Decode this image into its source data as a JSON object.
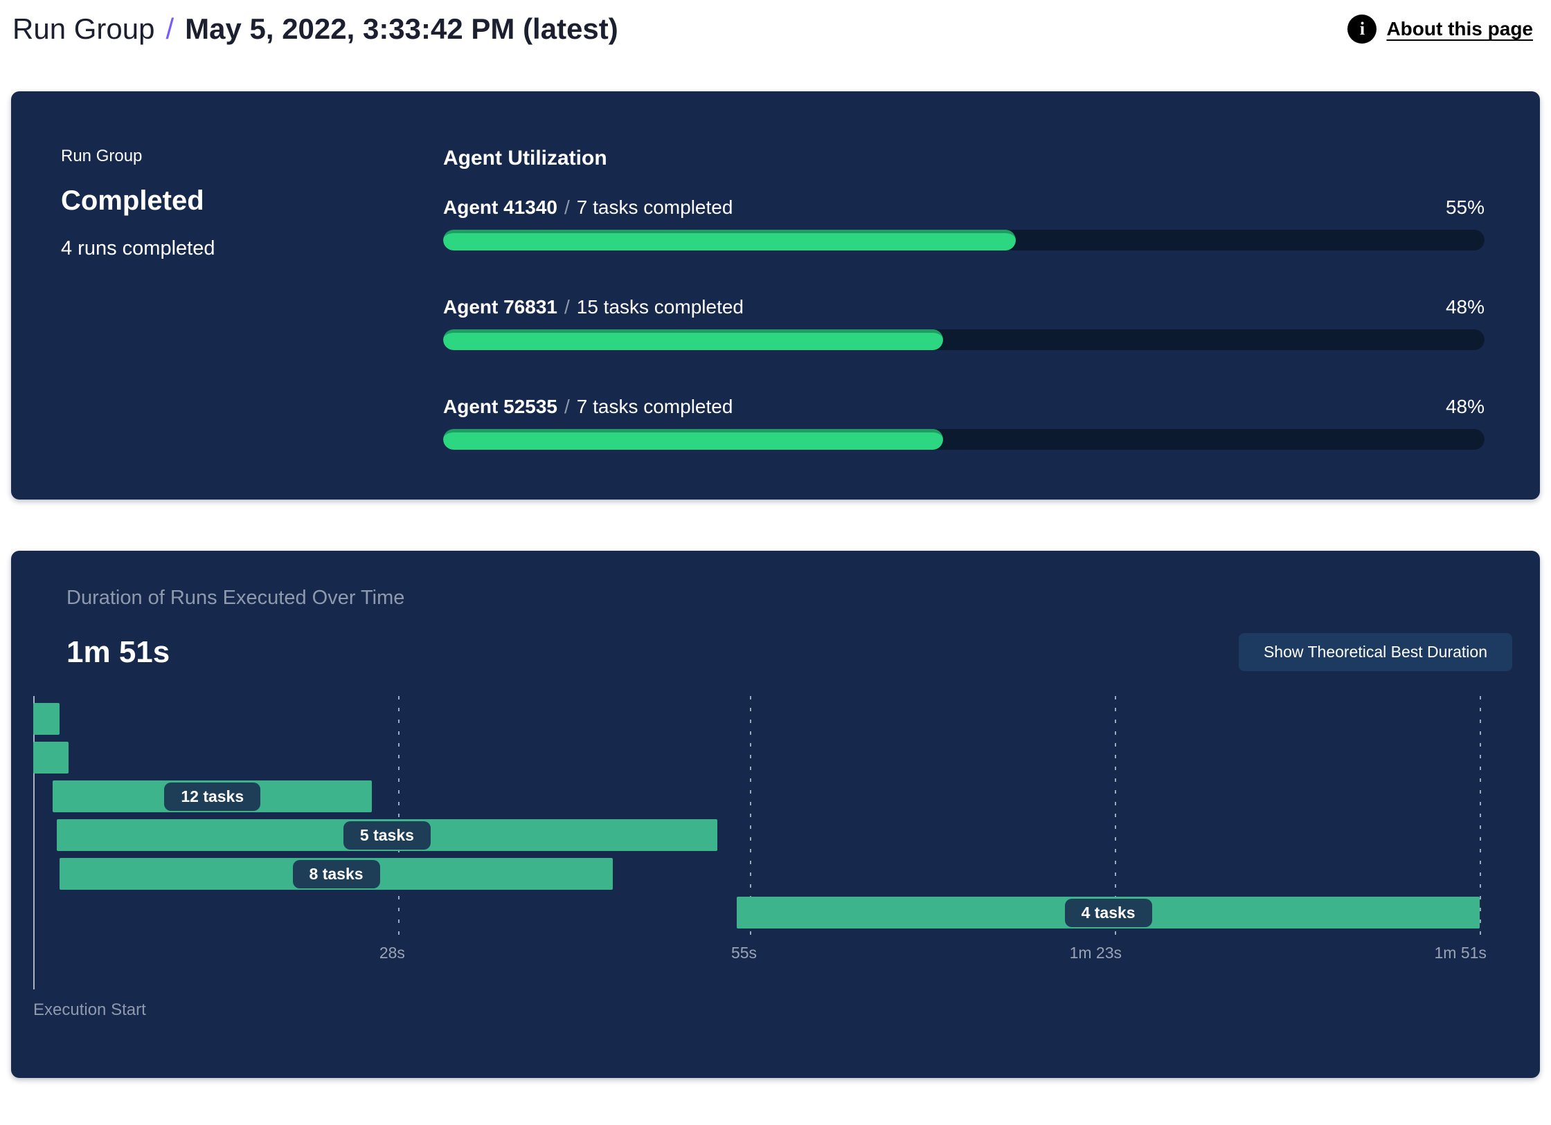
{
  "header": {
    "breadcrumb_root": "Run Group",
    "separator": "/",
    "title": "May 5, 2022, 3:33:42 PM (latest)",
    "about_link": "About this page",
    "info_glyph": "i"
  },
  "status_card": {
    "eyebrow": "Run Group",
    "status": "Completed",
    "subtext": "4 runs completed"
  },
  "agent_utilization": {
    "heading": "Agent Utilization",
    "agents": [
      {
        "name": "Agent 41340",
        "sep": "/",
        "detail": "7 tasks completed",
        "percent": 55,
        "percent_label": "55%"
      },
      {
        "name": "Agent 76831",
        "sep": "/",
        "detail": "15 tasks completed",
        "percent": 48,
        "percent_label": "48%"
      },
      {
        "name": "Agent 52535",
        "sep": "/",
        "detail": "7 tasks completed",
        "percent": 48,
        "percent_label": "48%"
      }
    ]
  },
  "duration_panel": {
    "title": "Duration of Runs Executed Over Time",
    "total": "1m 51s",
    "button_label": "Show Theoretical Best Duration",
    "execution_start": "Execution Start"
  },
  "chart_data": [
    {
      "type": "bar",
      "title": "Agent Utilization",
      "categories": [
        "Agent 41340",
        "Agent 76831",
        "Agent 52535"
      ],
      "values": [
        55,
        48,
        48
      ],
      "unit": "%",
      "xlim": [
        0,
        100
      ],
      "annotations": [
        "7 tasks completed",
        "15 tasks completed",
        "7 tasks completed"
      ]
    },
    {
      "type": "gantt",
      "title": "Duration of Runs Executed Over Time",
      "total_duration_label": "1m 51s",
      "xlabel": "Execution Start",
      "time_axis_seconds": [
        0,
        113.5
      ],
      "grid": true,
      "ticks": [
        {
          "label": "28s",
          "t": 28
        },
        {
          "label": "55s",
          "t": 55
        },
        {
          "label": "1m 23s",
          "t": 83
        },
        {
          "label": "1m 51s",
          "t": 111
        }
      ],
      "runs": [
        {
          "label": "",
          "start_s": 0,
          "end_s": 2.0
        },
        {
          "label": "",
          "start_s": 0,
          "end_s": 2.7
        },
        {
          "label": "12 tasks",
          "start_s": 1.5,
          "end_s": 26.0
        },
        {
          "label": "5 tasks",
          "start_s": 1.8,
          "end_s": 52.5
        },
        {
          "label": "8 tasks",
          "start_s": 2.0,
          "end_s": 44.5
        },
        {
          "label": "4 tasks",
          "start_s": 54.0,
          "end_s": 111.0
        }
      ]
    }
  ],
  "colors": {
    "card_bg": "#16294c",
    "progress_fill": "#2dd680",
    "progress_fill_edge": "#1f9e63",
    "progress_track": "#0c1a30",
    "gantt_bar": "#3db48c",
    "pill_bg": "#1e3e58",
    "accent_purple": "#7a5af8",
    "button_bg": "#1d3a60",
    "muted_text": "#8e99ad",
    "axis_line": "#aab3c2"
  }
}
